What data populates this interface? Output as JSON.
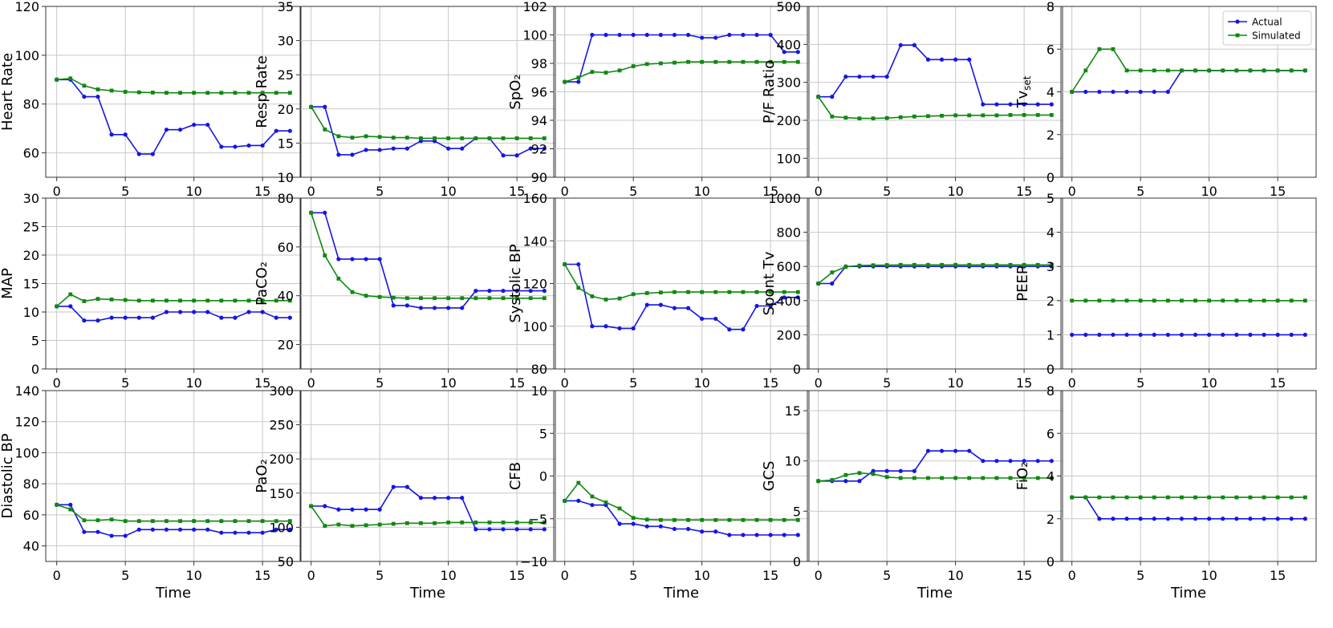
{
  "colors": {
    "actual": "#1515e6",
    "simulated": "#118811",
    "grid": "#c8c8c8",
    "frame": "#333333"
  },
  "legend": {
    "placement": "top-right",
    "actual_label": "Actual",
    "simulated_label": "Simulated"
  },
  "chart_data": [
    {
      "type": "line",
      "ylabel": "Heart Rate",
      "xlabel": "",
      "ylim": [
        50,
        120
      ],
      "xlim": [
        -0.8,
        17.8
      ],
      "yticks": [
        60,
        80,
        100,
        120
      ],
      "xticks": [
        0,
        5,
        10,
        15
      ],
      "series": [
        {
          "name": "Actual",
          "values": [
            90,
            90,
            83,
            83,
            67.5,
            67.5,
            59.5,
            59.5,
            69.5,
            69.5,
            71.5,
            71.5,
            62.5,
            62.5,
            63,
            63,
            69,
            69
          ]
        },
        {
          "name": "Simulated",
          "values": [
            90,
            90.5,
            87.5,
            86,
            85.5,
            85,
            84.8,
            84.7,
            84.6,
            84.6,
            84.6,
            84.6,
            84.6,
            84.6,
            84.6,
            84.6,
            84.6,
            84.6
          ]
        }
      ]
    },
    {
      "type": "line",
      "ylabel": "Resp Rate",
      "xlabel": "",
      "ylim": [
        10,
        35
      ],
      "xlim": [
        -0.8,
        17.8
      ],
      "yticks": [
        10,
        15,
        20,
        25,
        30,
        35
      ],
      "xticks": [
        0,
        5,
        10,
        15
      ],
      "series": [
        {
          "name": "Actual",
          "values": [
            20.3,
            20.3,
            13.3,
            13.3,
            14,
            14,
            14.2,
            14.2,
            15.3,
            15.3,
            14.2,
            14.2,
            15.7,
            15.7,
            13.2,
            13.2,
            14.2,
            14.2
          ]
        },
        {
          "name": "Simulated",
          "values": [
            20.3,
            17,
            16,
            15.8,
            16,
            15.9,
            15.8,
            15.8,
            15.7,
            15.7,
            15.7,
            15.7,
            15.7,
            15.7,
            15.7,
            15.7,
            15.7,
            15.7
          ]
        }
      ]
    },
    {
      "type": "line",
      "ylabel": "SpO₂",
      "xlabel": "",
      "ylim": [
        90,
        102
      ],
      "xlim": [
        -0.8,
        17.8
      ],
      "yticks": [
        90,
        92,
        94,
        96,
        98,
        100,
        102
      ],
      "xticks": [
        0,
        5,
        10,
        15
      ],
      "series": [
        {
          "name": "Actual",
          "values": [
            96.7,
            96.7,
            100,
            100,
            100,
            100,
            100,
            100,
            100,
            100,
            99.8,
            99.8,
            100,
            100,
            100,
            100,
            98.8,
            98.8
          ]
        },
        {
          "name": "Simulated",
          "values": [
            96.7,
            97,
            97.4,
            97.35,
            97.5,
            97.8,
            97.95,
            98,
            98.05,
            98.1,
            98.1,
            98.1,
            98.1,
            98.1,
            98.1,
            98.1,
            98.1,
            98.1
          ]
        }
      ]
    },
    {
      "type": "line",
      "ylabel": "P/F Ratio",
      "xlabel": "",
      "ylim": [
        50,
        500
      ],
      "xlim": [
        -0.8,
        17.8
      ],
      "yticks": [
        100,
        200,
        300,
        400,
        500
      ],
      "xticks": [
        0,
        5,
        10,
        15
      ],
      "series": [
        {
          "name": "Actual",
          "values": [
            262,
            262,
            315,
            315,
            315,
            315,
            398,
            398,
            360,
            360,
            360,
            360,
            242,
            242,
            242,
            242,
            242,
            242
          ]
        },
        {
          "name": "Simulated",
          "values": [
            262,
            210,
            207,
            205,
            205,
            206,
            208,
            210,
            211,
            212,
            213,
            213,
            213,
            213,
            214,
            214,
            214,
            214
          ]
        }
      ]
    },
    {
      "type": "line",
      "ylabel": "Tvset",
      "xlabel": "",
      "ylim": [
        0,
        8
      ],
      "xlim": [
        -0.8,
        17.8
      ],
      "yticks": [
        0,
        2,
        4,
        6,
        8
      ],
      "xticks": [
        0,
        5,
        10,
        15
      ],
      "series": [
        {
          "name": "Actual",
          "values": [
            4,
            4,
            4,
            4,
            4,
            4,
            4,
            4,
            5,
            5,
            5,
            5,
            5,
            5,
            5,
            5,
            5,
            5
          ]
        },
        {
          "name": "Simulated",
          "values": [
            4,
            5,
            6,
            6,
            5,
            5,
            5,
            5,
            5,
            5,
            5,
            5,
            5,
            5,
            5,
            5,
            5,
            5
          ]
        }
      ]
    },
    {
      "type": "line",
      "ylabel": "MAP",
      "xlabel": "",
      "ylim": [
        0,
        30
      ],
      "xlim": [
        -0.8,
        17.8
      ],
      "yticks": [
        0,
        5,
        10,
        15,
        20,
        25,
        30
      ],
      "xticks": [
        0,
        5,
        10,
        15
      ],
      "series": [
        {
          "name": "Actual",
          "values": [
            11,
            11,
            8.5,
            8.5,
            9,
            9,
            9,
            9,
            10,
            10,
            10,
            10,
            9,
            9,
            10,
            10,
            9,
            9
          ]
        },
        {
          "name": "Simulated",
          "values": [
            11,
            13.1,
            11.9,
            12.3,
            12.2,
            12.1,
            12,
            12,
            12,
            12,
            12,
            12,
            12,
            12,
            12,
            12,
            12,
            12
          ]
        }
      ]
    },
    {
      "type": "line",
      "ylabel": "PaCO₂",
      "xlabel": "",
      "ylim": [
        10,
        80
      ],
      "xlim": [
        -0.8,
        17.8
      ],
      "yticks": [
        20,
        40,
        60,
        80
      ],
      "xticks": [
        0,
        5,
        10,
        15
      ],
      "series": [
        {
          "name": "Actual",
          "values": [
            74,
            74,
            55,
            55,
            55,
            55,
            36,
            36,
            35,
            35,
            35,
            35,
            42,
            42,
            42,
            42,
            42,
            42
          ]
        },
        {
          "name": "Simulated",
          "values": [
            74,
            56.5,
            47,
            41.5,
            40,
            39.5,
            39.2,
            39,
            39,
            39,
            39,
            39,
            39,
            39,
            39,
            39,
            39,
            39
          ]
        }
      ]
    },
    {
      "type": "line",
      "ylabel": "Systolic BP",
      "xlabel": "",
      "ylim": [
        80,
        160
      ],
      "xlim": [
        -0.8,
        17.8
      ],
      "yticks": [
        80,
        100,
        120,
        140,
        160
      ],
      "xticks": [
        0,
        5,
        10,
        15
      ],
      "series": [
        {
          "name": "Actual",
          "values": [
            129,
            129,
            100,
            100,
            99,
            99,
            110,
            110,
            108.5,
            108.5,
            103.5,
            103.5,
            98.5,
            98.5,
            109.5,
            109.5,
            113.5,
            113.5
          ]
        },
        {
          "name": "Simulated",
          "values": [
            129,
            118,
            114,
            112.5,
            113,
            115,
            115.5,
            115.8,
            116,
            116,
            116,
            116,
            116,
            116,
            116,
            116,
            116,
            116
          ]
        }
      ]
    },
    {
      "type": "line",
      "ylabel": "Spont Tv",
      "xlabel": "",
      "ylim": [
        0,
        1000
      ],
      "xlim": [
        -0.8,
        17.8
      ],
      "yticks": [
        0,
        200,
        400,
        600,
        800,
        1000
      ],
      "xticks": [
        0,
        5,
        10,
        15
      ],
      "series": [
        {
          "name": "Actual",
          "values": [
            500,
            500,
            600,
            600,
            600,
            600,
            600,
            600,
            600,
            600,
            600,
            600,
            600,
            600,
            600,
            600,
            600,
            600
          ]
        },
        {
          "name": "Simulated",
          "values": [
            500,
            565,
            598,
            605,
            607,
            608,
            609,
            609,
            609,
            609,
            609,
            609,
            609,
            609,
            609,
            609,
            609,
            609
          ]
        }
      ]
    },
    {
      "type": "line",
      "ylabel": "PEEP",
      "xlabel": "",
      "ylim": [
        0,
        5
      ],
      "xlim": [
        -0.8,
        17.8
      ],
      "yticks": [
        0,
        1,
        2,
        3,
        4,
        5
      ],
      "xticks": [
        0,
        5,
        10,
        15
      ],
      "series": [
        {
          "name": "Actual",
          "values": [
            1,
            1,
            1,
            1,
            1,
            1,
            1,
            1,
            1,
            1,
            1,
            1,
            1,
            1,
            1,
            1,
            1,
            1
          ]
        },
        {
          "name": "Simulated",
          "values": [
            2,
            2,
            2,
            2,
            2,
            2,
            2,
            2,
            2,
            2,
            2,
            2,
            2,
            2,
            2,
            2,
            2,
            2
          ]
        }
      ]
    },
    {
      "type": "line",
      "ylabel": "Diastolic BP",
      "xlabel": "Time",
      "ylim": [
        30,
        140
      ],
      "xlim": [
        -0.8,
        17.8
      ],
      "yticks": [
        40,
        60,
        80,
        100,
        120,
        140
      ],
      "xticks": [
        0,
        5,
        10,
        15
      ],
      "series": [
        {
          "name": "Actual",
          "values": [
            66.5,
            66.5,
            49,
            49,
            46.5,
            46.5,
            50.5,
            50.5,
            50.5,
            50.5,
            50.5,
            50.5,
            48.5,
            48.5,
            48.5,
            48.5,
            50.5,
            50.5
          ]
        },
        {
          "name": "Simulated",
          "values": [
            66.5,
            63.5,
            56.5,
            56.5,
            57,
            56,
            56,
            56,
            56,
            56,
            56,
            56,
            56,
            56,
            56,
            56,
            56,
            56
          ]
        }
      ]
    },
    {
      "type": "line",
      "ylabel": "PaO₂",
      "xlabel": "Time",
      "ylim": [
        50,
        300
      ],
      "xlim": [
        -0.8,
        17.8
      ],
      "yticks": [
        50,
        100,
        150,
        200,
        250,
        300
      ],
      "xticks": [
        0,
        5,
        10,
        15
      ],
      "series": [
        {
          "name": "Actual",
          "values": [
            131,
            131,
            126,
            126,
            126,
            126,
            159,
            159,
            143,
            143,
            143,
            143,
            97,
            97,
            97,
            97,
            97,
            97
          ]
        },
        {
          "name": "Simulated",
          "values": [
            131,
            102,
            104,
            102,
            103,
            104,
            105,
            106,
            106,
            106,
            107,
            107,
            107,
            107,
            107,
            107,
            107,
            107
          ]
        }
      ]
    },
    {
      "type": "line",
      "ylabel": "CFB",
      "xlabel": "Time",
      "ylim": [
        -10,
        10
      ],
      "xlim": [
        -0.8,
        17.8
      ],
      "yticks": [
        -10,
        -5,
        0,
        5,
        10
      ],
      "xticks": [
        0,
        5,
        10,
        15
      ],
      "series": [
        {
          "name": "Actual",
          "values": [
            -2.9,
            -2.9,
            -3.4,
            -3.4,
            -5.6,
            -5.6,
            -5.9,
            -5.9,
            -6.2,
            -6.2,
            -6.5,
            -6.5,
            -6.9,
            -6.9,
            -6.9,
            -6.9,
            -6.9,
            -6.9
          ]
        },
        {
          "name": "Simulated",
          "values": [
            -2.9,
            -0.8,
            -2.4,
            -3.1,
            -3.8,
            -4.9,
            -5.1,
            -5.15,
            -5.15,
            -5.15,
            -5.15,
            -5.15,
            -5.15,
            -5.15,
            -5.15,
            -5.15,
            -5.15,
            -5.15
          ]
        }
      ]
    },
    {
      "type": "line",
      "ylabel": "GCS",
      "xlabel": "Time",
      "ylim": [
        0,
        17
      ],
      "xlim": [
        -0.8,
        17.8
      ],
      "yticks": [
        0,
        5,
        10,
        15
      ],
      "xticks": [
        0,
        5,
        10,
        15
      ],
      "series": [
        {
          "name": "Actual",
          "values": [
            8,
            8,
            8,
            8,
            9,
            9,
            9,
            9,
            11,
            11,
            11,
            11,
            10,
            10,
            10,
            10,
            10,
            10
          ]
        },
        {
          "name": "Simulated",
          "values": [
            8,
            8.1,
            8.6,
            8.8,
            8.7,
            8.4,
            8.3,
            8.3,
            8.3,
            8.3,
            8.3,
            8.3,
            8.3,
            8.3,
            8.3,
            8.3,
            8.3,
            8.3
          ]
        }
      ]
    },
    {
      "type": "line",
      "ylabel": "FiO₂",
      "xlabel": "Time",
      "ylim": [
        0,
        8
      ],
      "xlim": [
        -0.8,
        17.8
      ],
      "yticks": [
        0,
        2,
        4,
        6,
        8
      ],
      "xticks": [
        0,
        5,
        10,
        15
      ],
      "series": [
        {
          "name": "Actual",
          "values": [
            3,
            3,
            2,
            2,
            2,
            2,
            2,
            2,
            2,
            2,
            2,
            2,
            2,
            2,
            2,
            2,
            2,
            2
          ]
        },
        {
          "name": "Simulated",
          "values": [
            3,
            3,
            3,
            3,
            3,
            3,
            3,
            3,
            3,
            3,
            3,
            3,
            3,
            3,
            3,
            3,
            3,
            3
          ]
        }
      ]
    }
  ]
}
